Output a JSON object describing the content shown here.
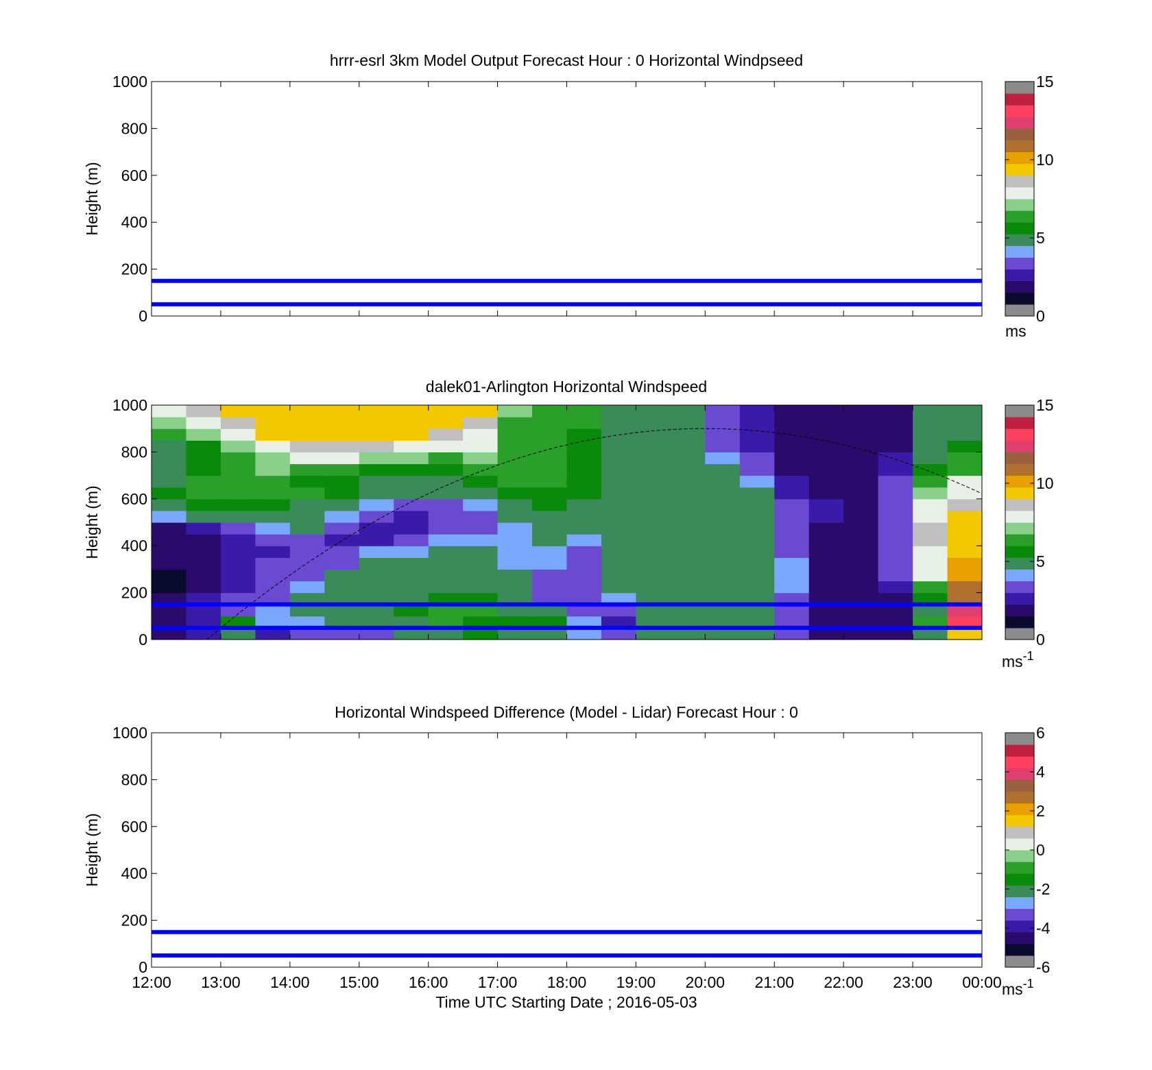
{
  "x_ticks": [
    "12:00",
    "13:00",
    "14:00",
    "15:00",
    "16:00",
    "17:00",
    "18:00",
    "19:00",
    "20:00",
    "21:00",
    "22:00",
    "23:00",
    "00:00"
  ],
  "y_ticks": [
    "0",
    "200",
    "400",
    "600",
    "800",
    "1000"
  ],
  "xlabel": "Time UTC  Starting Date ; 2016-05-03",
  "colors": {
    "reference_lines": "#0000ff",
    "colormap": [
      "#8c8c8c",
      "#0a0a2e",
      "#2a0a6a",
      "#3a1aa8",
      "#6a4ad0",
      "#7aa8ff",
      "#3a8a5a",
      "#0a8a0a",
      "#2aa02a",
      "#8ad08a",
      "#e8f0e8",
      "#c0c0c0",
      "#f2c800",
      "#e8a000",
      "#b07030",
      "#9a6040",
      "#e04070",
      "#ff4060",
      "#c02040",
      "#8c8c8c"
    ]
  },
  "chart_data": [
    {
      "type": "heatmap",
      "title": "hrrr-esrl 3km Model Output   Forecast Hour : 0 Horizontal Windpseed",
      "xlabel": "",
      "ylabel": "Height (m)",
      "x_range_hours": [
        12,
        24
      ],
      "ylim": [
        0,
        1000
      ],
      "colorbar": {
        "range": [
          0,
          15
        ],
        "ticks": [
          "0",
          "5",
          "10",
          "15"
        ],
        "unit": "ms",
        "unit_superscript": ""
      },
      "hlines_m": [
        50,
        150
      ],
      "data": []
    },
    {
      "type": "heatmap",
      "title": "dalek01-Arlington  Horizontal Windspeed",
      "xlabel": "",
      "ylabel": "Height (m)",
      "x_range_hours": [
        12,
        24
      ],
      "ylim": [
        0,
        1000
      ],
      "colorbar": {
        "range": [
          0,
          15
        ],
        "ticks": [
          "0",
          "5",
          "10",
          "15"
        ],
        "unit": "ms",
        "unit_superscript": "-1"
      },
      "hlines_m": [
        50,
        150
      ],
      "arc_peak": {
        "time_hours": 20.0,
        "height_m": 900
      },
      "heights_m": [
        25,
        75,
        125,
        175,
        225,
        275,
        325,
        375,
        425,
        475,
        525,
        575,
        625,
        675,
        725,
        775,
        825,
        875,
        925,
        975
      ],
      "times_hours": [
        12.25,
        12.75,
        13.25,
        13.75,
        14.25,
        14.75,
        15.25,
        15.75,
        16.25,
        16.75,
        17.25,
        17.75,
        18.25,
        18.75,
        19.25,
        19.75,
        20.25,
        20.75,
        21.25,
        21.75,
        22.25,
        22.75,
        23.25,
        23.75
      ],
      "values_ms": [
        [
          1.5,
          2.5,
          5,
          2.5,
          3,
          3,
          3,
          5,
          5,
          5.5,
          4.5,
          5,
          4,
          3,
          5,
          5,
          5,
          4.5,
          3,
          2,
          1.5,
          1.5,
          5,
          9
        ],
        [
          1.5,
          2.5,
          5.5,
          4,
          4,
          4.5,
          5,
          5,
          6,
          5.5,
          5.5,
          5.5,
          4,
          2.5,
          5,
          5,
          5,
          5,
          3.5,
          1.5,
          1.5,
          1.5,
          6,
          13
        ],
        [
          1.5,
          2.5,
          3,
          4,
          5,
          5,
          5,
          5.5,
          6,
          6,
          5,
          5,
          3.5,
          3.5,
          5,
          5,
          5,
          5,
          3.5,
          1.5,
          1.5,
          1.5,
          5,
          12
        ],
        [
          1.5,
          2.5,
          3,
          3.5,
          4.5,
          5,
          5,
          5,
          5.5,
          5.5,
          4.5,
          3.5,
          3,
          4,
          5,
          5,
          5,
          5,
          3.5,
          2,
          1.5,
          2,
          5.5,
          11
        ],
        [
          1,
          2,
          2.5,
          3,
          4,
          5,
          5,
          5,
          5,
          5,
          4.5,
          3,
          3.5,
          4.5,
          5,
          5,
          5,
          5,
          4,
          2,
          1.5,
          2.5,
          6.5,
          11
        ],
        [
          1,
          2,
          2.5,
          3,
          3.5,
          4.5,
          5,
          5,
          5,
          4.5,
          4.5,
          3.5,
          3,
          4.5,
          5,
          5,
          5,
          5,
          4,
          2,
          1.5,
          3,
          7.5,
          10
        ],
        [
          1.5,
          2,
          2.5,
          3,
          3,
          3.5,
          4.5,
          4.5,
          5,
          4.5,
          4,
          4,
          3,
          4.5,
          5,
          5,
          5,
          5,
          4,
          2,
          2,
          3,
          8,
          10
        ],
        [
          1.5,
          2,
          2.5,
          2.5,
          3,
          3,
          4,
          4,
          4.5,
          4.5,
          4,
          4,
          3.5,
          4.5,
          5,
          5,
          5,
          5,
          3.5,
          2,
          2,
          3,
          8,
          9.5
        ],
        [
          1.5,
          2,
          2.5,
          3,
          3.5,
          2.5,
          2.5,
          3,
          4,
          4,
          4,
          4.5,
          4,
          5,
          5,
          5,
          5,
          5,
          3,
          2,
          2,
          3,
          8.5,
          9
        ],
        [
          2,
          2.5,
          3,
          4,
          4.5,
          3,
          2.5,
          2.5,
          3.5,
          3.5,
          4,
          4.5,
          4.5,
          5,
          5,
          5,
          5,
          5,
          3,
          2,
          2,
          3,
          8.5,
          9
        ],
        [
          4,
          4.5,
          4.5,
          5,
          5,
          4,
          3,
          2.5,
          3,
          3.5,
          4.5,
          5,
          5,
          5,
          5,
          5,
          5,
          5,
          3,
          2.5,
          2,
          3.5,
          8,
          9
        ],
        [
          5,
          5.5,
          5.5,
          5.5,
          5,
          5,
          4,
          3,
          3.5,
          4,
          5,
          5.5,
          5,
          5,
          5,
          5,
          5,
          5,
          3,
          2.5,
          2,
          3.5,
          7.5,
          8.5
        ],
        [
          5.5,
          6,
          6,
          6,
          6,
          5.5,
          5,
          4.5,
          4.5,
          5,
          5.5,
          5.5,
          5.5,
          5,
          5,
          5,
          5,
          4.5,
          2.5,
          2,
          2,
          3,
          7,
          8
        ],
        [
          5,
          6,
          6.5,
          6,
          5.5,
          5.5,
          5,
          5,
          5,
          5.5,
          6,
          6,
          5.5,
          5,
          5,
          5,
          5,
          4,
          2.5,
          2,
          2,
          3,
          6.5,
          7.5
        ],
        [
          5,
          5.5,
          6.5,
          7,
          6.5,
          6,
          5.5,
          5.5,
          5.5,
          6,
          6.5,
          6,
          5.5,
          5,
          5,
          5,
          4.5,
          3.5,
          2,
          2,
          2,
          2.5,
          5.5,
          6.5
        ],
        [
          5,
          5.5,
          6,
          7,
          7.5,
          7.5,
          7,
          7,
          6.5,
          7,
          6.5,
          6,
          5.5,
          5,
          5,
          5,
          4,
          3,
          2,
          2,
          2,
          2.5,
          5,
          6
        ],
        [
          5,
          5.5,
          7,
          8,
          8.5,
          8.5,
          8.5,
          8,
          8,
          8,
          6.5,
          6,
          5.5,
          5,
          5,
          5,
          3.5,
          2.5,
          2,
          2,
          1.5,
          2,
          5,
          5.5
        ],
        [
          6,
          7,
          8,
          9,
          9,
          9,
          9,
          9,
          8.5,
          8,
          6.5,
          6,
          5.5,
          5,
          5,
          5,
          3,
          2.5,
          2,
          1.5,
          1.5,
          2,
          5,
          5
        ],
        [
          7,
          8,
          8.5,
          9,
          9.5,
          9.5,
          9,
          9,
          9,
          8.5,
          6.5,
          6,
          6,
          5,
          5,
          5,
          3,
          2.5,
          2,
          1.5,
          1.5,
          2,
          5,
          5
        ],
        [
          8,
          8.5,
          9,
          9,
          9.5,
          9.5,
          9,
          9,
          9,
          9,
          7,
          6,
          6,
          5,
          5,
          5,
          3,
          2.5,
          2,
          1.5,
          1.5,
          2,
          5,
          5
        ]
      ]
    },
    {
      "type": "heatmap",
      "title": "Horizontal Windspeed Difference (Model - Lidar) Forecast Hour : 0",
      "xlabel": "Time UTC  Starting Date ; 2016-05-03",
      "ylabel": "Height (m)",
      "x_range_hours": [
        12,
        24
      ],
      "ylim": [
        0,
        1000
      ],
      "colorbar": {
        "range": [
          -6,
          6
        ],
        "ticks": [
          "-6",
          "-4",
          "-2",
          "0",
          "2",
          "4",
          "6"
        ],
        "unit": "ms",
        "unit_superscript": "-1"
      },
      "hlines_m": [
        50,
        150
      ],
      "data": []
    }
  ]
}
